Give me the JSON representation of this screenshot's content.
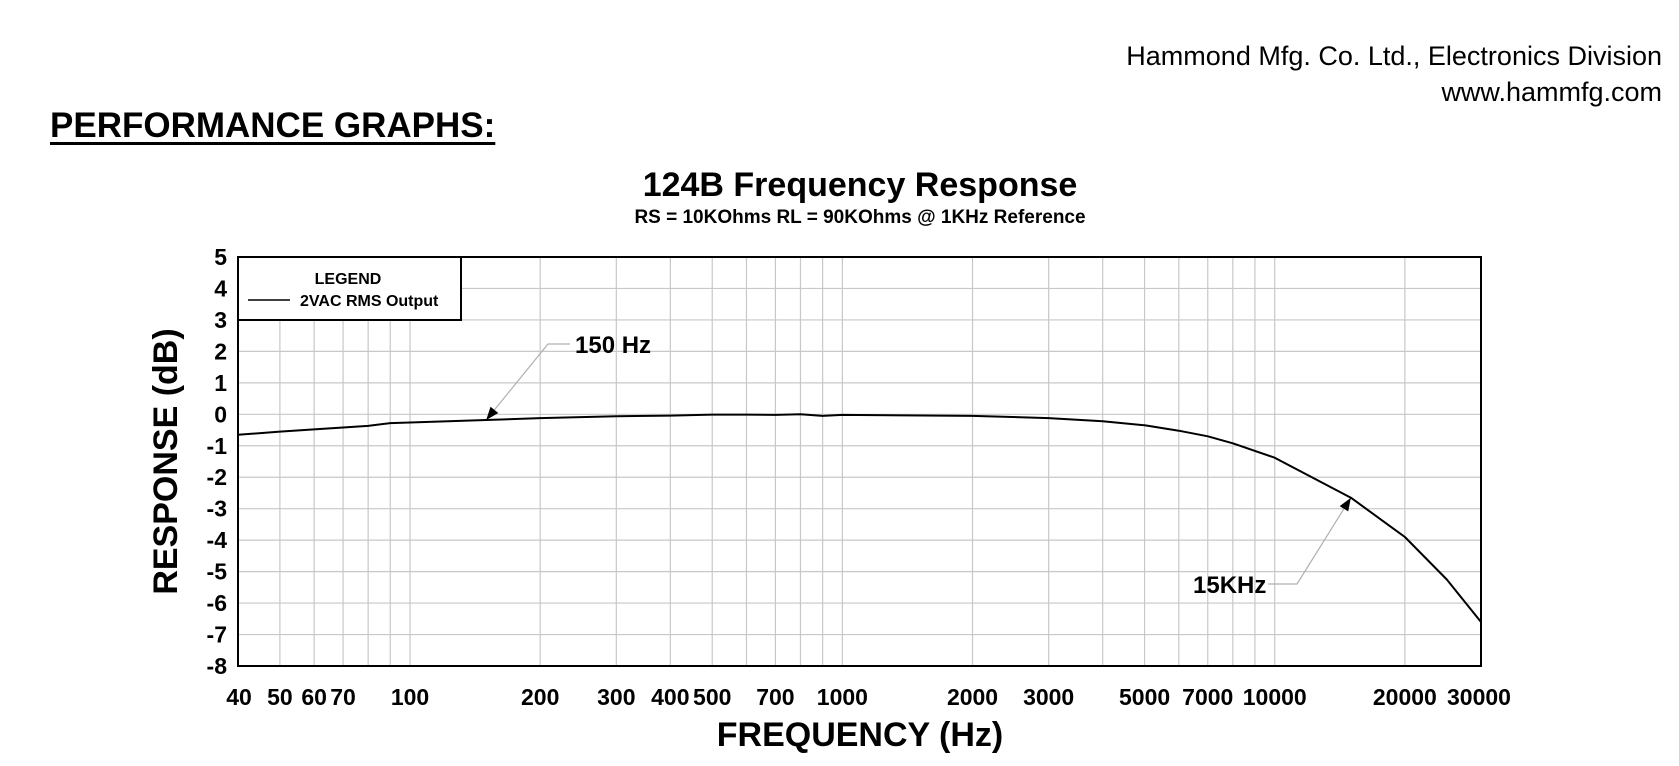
{
  "header": {
    "company_name": "Hammond Mfg. Co. Ltd., Electronics Division",
    "website": "www.hammfg.com"
  },
  "section_title": "PERFORMANCE GRAPHS:",
  "chart_data": {
    "type": "line",
    "title": "124B Frequency Response",
    "subtitle": "RS = 10KOhms  RL = 90KOhms @ 1KHz Reference",
    "xlabel": "FREQUENCY (Hz)",
    "ylabel": "RESPONSE (dB)",
    "x_scale": "log",
    "xlim": [
      40,
      30000
    ],
    "ylim": [
      -8,
      5
    ],
    "grid": true,
    "x_ticks": [
      {
        "value": 40,
        "label": "40"
      },
      {
        "value": 50,
        "label": "50"
      },
      {
        "value": 60,
        "label": "60"
      },
      {
        "value": 70,
        "label": "70"
      },
      {
        "value": 100,
        "label": "100"
      },
      {
        "value": 200,
        "label": "200"
      },
      {
        "value": 300,
        "label": "300"
      },
      {
        "value": 400,
        "label": "400"
      },
      {
        "value": 500,
        "label": "500"
      },
      {
        "value": 700,
        "label": "700"
      },
      {
        "value": 1000,
        "label": "1000"
      },
      {
        "value": 2000,
        "label": "2000"
      },
      {
        "value": 3000,
        "label": "3000"
      },
      {
        "value": 5000,
        "label": "5000"
      },
      {
        "value": 7000,
        "label": "7000"
      },
      {
        "value": 10000,
        "label": "10000"
      },
      {
        "value": 20000,
        "label": "20000"
      },
      {
        "value": 30000,
        "label": "30000"
      }
    ],
    "x_grid": [
      40,
      50,
      60,
      70,
      80,
      90,
      100,
      200,
      300,
      400,
      500,
      600,
      700,
      800,
      900,
      1000,
      2000,
      3000,
      4000,
      5000,
      6000,
      7000,
      8000,
      9000,
      10000,
      20000,
      30000
    ],
    "y_ticks": [
      5,
      4,
      3,
      2,
      1,
      0,
      -1,
      -2,
      -3,
      -4,
      -5,
      -6,
      -7,
      -8
    ],
    "legend": {
      "title": "LEGEND",
      "position": "top-left",
      "entries": [
        "2VAC RMS Output"
      ]
    },
    "series": [
      {
        "name": "2VAC RMS Output",
        "x": [
          40,
          50,
          60,
          70,
          80,
          90,
          100,
          150,
          200,
          300,
          400,
          500,
          600,
          700,
          800,
          900,
          1000,
          2000,
          3000,
          4000,
          5000,
          6000,
          7000,
          8000,
          10000,
          15000,
          20000,
          25000,
          30000
        ],
        "y": [
          -0.65,
          -0.55,
          -0.48,
          -0.42,
          -0.37,
          -0.28,
          -0.26,
          -0.18,
          -0.12,
          -0.06,
          -0.04,
          -0.01,
          -0.01,
          -0.02,
          0.0,
          -0.05,
          -0.02,
          -0.05,
          -0.12,
          -0.22,
          -0.35,
          -0.52,
          -0.7,
          -0.92,
          -1.38,
          -2.65,
          -3.9,
          -5.25,
          -6.6
        ]
      }
    ],
    "annotations": [
      {
        "text": "150 Hz",
        "x": 150,
        "y": -0.18
      },
      {
        "text": "15KHz",
        "x": 15000,
        "y": -2.65
      }
    ]
  }
}
